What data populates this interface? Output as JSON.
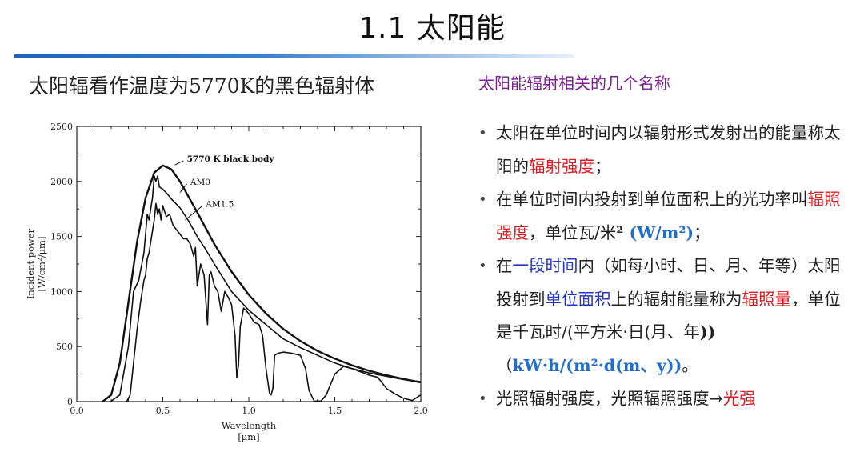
{
  "slide": {
    "title": "1.1  太阳能",
    "left_heading": "太阳辐看作温度为5770K的黑色辐射体",
    "right_heading": "太阳能辐射相关的几个名称"
  },
  "bullets": [
    {
      "parts": [
        {
          "text": "太阳在单位时间内以辐射形式发射出的能量称太阳的"
        },
        {
          "text": "辐射强度",
          "style": "red"
        },
        {
          "text": "；"
        }
      ]
    },
    {
      "parts": [
        {
          "text": "在单位时间内投射到单位面积上的光功率叫"
        },
        {
          "text": "辐照强度",
          "style": "red"
        },
        {
          "text": "，单位瓦/米"
        },
        {
          "text": "²",
          "style": "bold-serif"
        },
        {
          "text": " (W/m²)",
          "style": "lblue"
        },
        {
          "text": "；"
        }
      ]
    },
    {
      "parts": [
        {
          "text": "在"
        },
        {
          "text": "一段时间",
          "style": "blue"
        },
        {
          "text": "内（如每小时、日、月、年等）太阳投射到"
        },
        {
          "text": "单位面积",
          "style": "blue"
        },
        {
          "text": "上的辐射能量称为"
        },
        {
          "text": "辐照量",
          "style": "red"
        },
        {
          "text": "，单位是千瓦时/(平方米·日(月、年"
        },
        {
          "text": "))",
          "style": "bold-serif"
        },
        {
          "text": "（"
        },
        {
          "text": "kW·h/(m²·d(m、y))",
          "style": "lblue"
        },
        {
          "text": "。"
        }
      ]
    },
    {
      "parts": [
        {
          "text": "光照辐射强度，光照辐照强度"
        },
        {
          "text": "→",
          "style": "bold-serif"
        },
        {
          "text": "光强",
          "style": "red"
        }
      ]
    }
  ],
  "chart_data": {
    "type": "line",
    "title": "",
    "xlabel": "Wavelength",
    "xlabel_unit": "[μm]",
    "ylabel": "Incident power",
    "ylabel_unit": "[W/cm²/μm]",
    "xlim": [
      0.0,
      2.0
    ],
    "ylim": [
      0,
      2500
    ],
    "x_ticks": [
      "0.0",
      "0.5",
      "1.0",
      "1.5",
      "2.0"
    ],
    "x_tick_values": [
      0,
      0.5,
      1.0,
      1.5,
      2.0
    ],
    "y_ticks": [
      "0",
      "500",
      "1000",
      "1500",
      "2000",
      "2500"
    ],
    "y_tick_values": [
      0,
      500,
      1000,
      1500,
      2000,
      2500
    ],
    "annotations": [
      "5770 K black body",
      "AM0",
      "AM1.5"
    ],
    "series": [
      {
        "name": "5770 K black body",
        "x": [
          0.15,
          0.2,
          0.25,
          0.3,
          0.35,
          0.4,
          0.45,
          0.5,
          0.55,
          0.6,
          0.7,
          0.8,
          0.9,
          1.0,
          1.1,
          1.2,
          1.3,
          1.4,
          1.5,
          1.6,
          1.7,
          1.8,
          1.9,
          2.0
        ],
        "y": [
          0,
          60,
          350,
          900,
          1450,
          1850,
          2080,
          2145,
          2110,
          2000,
          1720,
          1430,
          1180,
          970,
          800,
          660,
          550,
          460,
          390,
          330,
          280,
          240,
          205,
          175
        ]
      },
      {
        "name": "AM0",
        "x": [
          0.2,
          0.25,
          0.3,
          0.33,
          0.36,
          0.39,
          0.41,
          0.42,
          0.43,
          0.44,
          0.45,
          0.46,
          0.47,
          0.48,
          0.5,
          0.53,
          0.55,
          0.6,
          0.65,
          0.7,
          0.75,
          0.8,
          0.9,
          1.0,
          1.1,
          1.2,
          1.3,
          1.4,
          1.5,
          1.6,
          1.7,
          1.8,
          1.9,
          2.0
        ],
        "y": [
          5,
          60,
          500,
          1000,
          1100,
          1350,
          1700,
          1650,
          1750,
          1850,
          2050,
          2000,
          2050,
          1950,
          1930,
          1880,
          1840,
          1760,
          1640,
          1500,
          1380,
          1250,
          1000,
          830,
          700,
          570,
          490,
          420,
          350,
          300,
          260,
          230,
          200,
          180
        ]
      },
      {
        "name": "AM1.5",
        "x": [
          0.29,
          0.31,
          0.33,
          0.35,
          0.37,
          0.39,
          0.4,
          0.41,
          0.42,
          0.43,
          0.44,
          0.45,
          0.46,
          0.47,
          0.48,
          0.49,
          0.5,
          0.52,
          0.54,
          0.56,
          0.58,
          0.6,
          0.62,
          0.64,
          0.66,
          0.68,
          0.69,
          0.7,
          0.72,
          0.74,
          0.76,
          0.77,
          0.78,
          0.8,
          0.82,
          0.84,
          0.86,
          0.88,
          0.9,
          0.92,
          0.93,
          0.94,
          0.95,
          0.97,
          1.0,
          1.03,
          1.06,
          1.08,
          1.1,
          1.12,
          1.13,
          1.14,
          1.15,
          1.17,
          1.2,
          1.25,
          1.3,
          1.33,
          1.35,
          1.38,
          1.4,
          1.42,
          1.45,
          1.5,
          1.55,
          1.6,
          1.65,
          1.7,
          1.75,
          1.77,
          1.8,
          1.85,
          1.9,
          1.95,
          2.0
        ],
        "y": [
          0,
          60,
          350,
          650,
          900,
          1100,
          1150,
          1300,
          1350,
          1450,
          1550,
          1650,
          1800,
          1700,
          1750,
          1650,
          1780,
          1680,
          1700,
          1600,
          1560,
          1520,
          1480,
          1480,
          1430,
          1320,
          1400,
          1050,
          1250,
          1150,
          700,
          1150,
          1180,
          1050,
          1000,
          820,
          1000,
          950,
          880,
          600,
          220,
          330,
          680,
          850,
          800,
          720,
          700,
          600,
          300,
          80,
          60,
          120,
          420,
          440,
          450,
          440,
          420,
          300,
          100,
          5,
          5,
          5,
          60,
          250,
          320,
          300,
          270,
          240,
          220,
          180,
          120,
          70,
          30,
          10,
          60
        ]
      }
    ]
  }
}
